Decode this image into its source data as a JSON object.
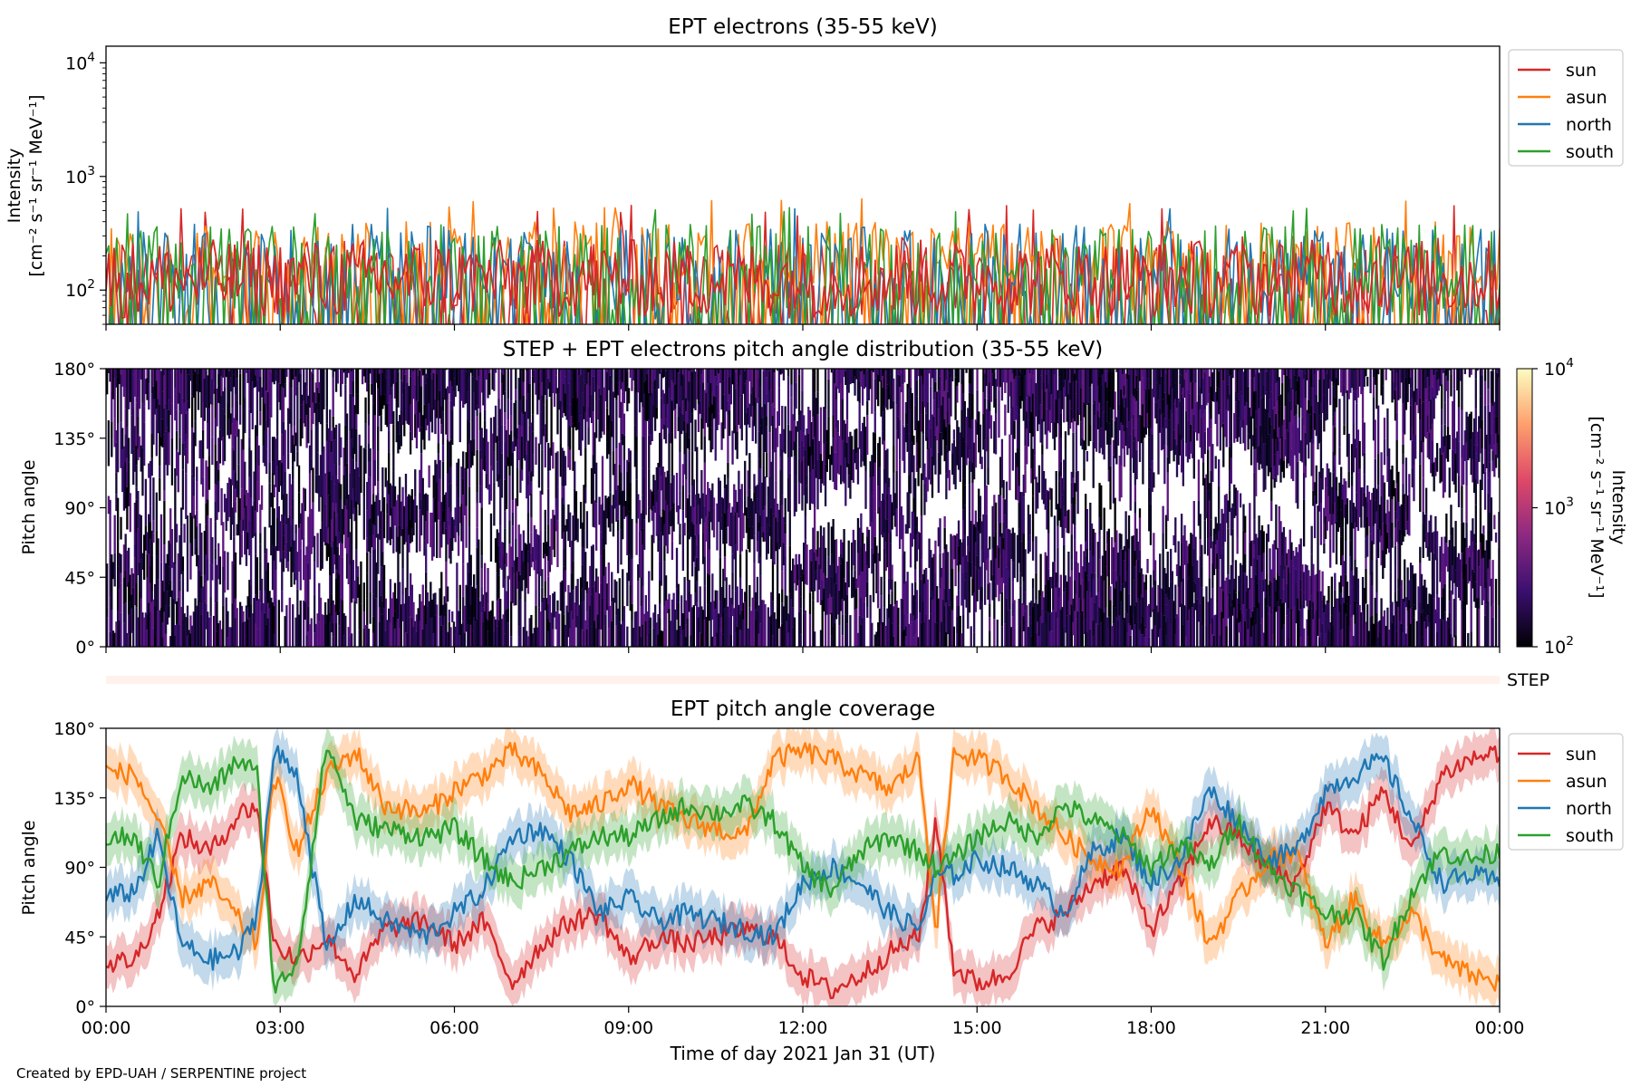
{
  "footer": "Created by EPD-UAH / SERPENTINE project",
  "colors": {
    "sun": "#d62728",
    "asun": "#ff7f0e",
    "north": "#1f77b4",
    "south": "#2ca02c"
  },
  "chart_data": [
    {
      "type": "line",
      "title": "EPT electrons (35-55 keV)",
      "ylabel_lines": [
        "Intensity",
        "[cm⁻² s⁻¹ sr⁻¹ MeV⁻¹]"
      ],
      "yscale": "log",
      "ylim": [
        50,
        14000
      ],
      "yticks": [
        {
          "value": 100,
          "base": "10",
          "exp": "2"
        },
        {
          "value": 1000,
          "base": "10",
          "exp": "3"
        },
        {
          "value": 10000,
          "base": "10",
          "exp": "4"
        }
      ],
      "xlim_hours": [
        0,
        24
      ],
      "legend_position": "upper right, outside",
      "series": [
        {
          "name": "sun",
          "color": "#d62728",
          "typical_range": [
            55,
            300
          ],
          "max": 560
        },
        {
          "name": "asun",
          "color": "#ff7f0e",
          "typical_range": [
            60,
            400
          ],
          "max": 650
        },
        {
          "name": "north",
          "color": "#1f77b4",
          "typical_range": [
            55,
            380
          ],
          "max": 580
        },
        {
          "name": "south",
          "color": "#2ca02c",
          "typical_range": [
            55,
            380
          ],
          "max": 550
        }
      ]
    },
    {
      "type": "heatmap",
      "title": "STEP + EPT electrons pitch angle distribution (35-55 keV)",
      "ylabel": "Pitch angle",
      "ylim": [
        0,
        180
      ],
      "yticks": [
        "0°",
        "45°",
        "90°",
        "135°",
        "180°"
      ],
      "xlim_hours": [
        0,
        24
      ],
      "colorbar": {
        "scale": "log",
        "range": [
          100,
          10000
        ],
        "label_lines": [
          "Intensity",
          "[cm⁻² s⁻¹ sr⁻¹ MeV⁻¹]"
        ],
        "ticks": [
          {
            "value": 100,
            "base": "10",
            "exp": "2"
          },
          {
            "value": 1000,
            "base": "10",
            "exp": "3"
          },
          {
            "value": 10000,
            "base": "10",
            "exp": "4"
          }
        ]
      }
    },
    {
      "type": "heatmap",
      "label": "STEP",
      "xlim_hours": [
        0,
        24
      ]
    },
    {
      "type": "line",
      "title": "EPT pitch angle coverage",
      "ylabel": "Pitch angle",
      "ylim": [
        0,
        180
      ],
      "yticks": [
        "0°",
        "45°",
        "90°",
        "135°",
        "180°"
      ],
      "xlabel": "Time of day 2021 Jan 31 (UT)",
      "xticks": [
        "00:00",
        "03:00",
        "06:00",
        "09:00",
        "12:00",
        "15:00",
        "18:00",
        "21:00",
        "00:00"
      ],
      "legend_position": "upper right, outside",
      "hours": [
        0,
        0.5,
        0.9,
        1.3,
        1.8,
        2.3,
        2.6,
        2.9,
        3.3,
        3.8,
        4.3,
        4.8,
        5.5,
        6.0,
        6.5,
        7.0,
        7.5,
        8.0,
        8.5,
        9.0,
        9.5,
        10.0,
        10.5,
        11.0,
        11.5,
        12.0,
        12.5,
        13.0,
        13.5,
        14.0,
        14.3,
        14.6,
        15.0,
        15.5,
        16.0,
        16.5,
        17.0,
        17.5,
        18.0,
        18.5,
        19.0,
        19.5,
        20.0,
        20.5,
        21.0,
        21.5,
        22.0,
        22.5,
        23.0,
        23.5,
        24.0
      ],
      "series": [
        {
          "name": "sun",
          "color": "#d62728",
          "values": [
            28,
            30,
            60,
            110,
            100,
            125,
            130,
            40,
            30,
            45,
            20,
            50,
            55,
            40,
            55,
            15,
            40,
            55,
            60,
            30,
            45,
            40,
            45,
            50,
            45,
            20,
            10,
            20,
            35,
            45,
            120,
            25,
            15,
            20,
            50,
            60,
            80,
            90,
            50,
            80,
            120,
            110,
            90,
            80,
            130,
            110,
            140,
            100,
            150,
            160,
            165
          ]
        },
        {
          "name": "asun",
          "color": "#ff7f0e",
          "values": [
            152,
            150,
            120,
            70,
            80,
            55,
            40,
            150,
            100,
            150,
            165,
            130,
            125,
            140,
            150,
            165,
            150,
            125,
            130,
            145,
            130,
            120,
            115,
            110,
            160,
            165,
            160,
            150,
            140,
            160,
            50,
            165,
            160,
            150,
            130,
            110,
            95,
            90,
            130,
            90,
            40,
            70,
            95,
            100,
            40,
            70,
            40,
            60,
            30,
            20,
            15
          ]
        },
        {
          "name": "north",
          "color": "#1f77b4",
          "values": [
            70,
            75,
            110,
            40,
            30,
            35,
            60,
            165,
            150,
            35,
            70,
            55,
            45,
            60,
            75,
            110,
            115,
            95,
            60,
            70,
            55,
            60,
            55,
            50,
            45,
            80,
            90,
            80,
            60,
            50,
            85,
            85,
            95,
            90,
            80,
            60,
            100,
            110,
            80,
            95,
            140,
            120,
            95,
            100,
            140,
            150,
            160,
            120,
            80,
            85,
            80
          ]
        },
        {
          "name": "south",
          "color": "#2ca02c",
          "values": [
            110,
            108,
            80,
            150,
            140,
            160,
            150,
            10,
            30,
            170,
            120,
            115,
            110,
            115,
            95,
            80,
            90,
            100,
            110,
            110,
            120,
            130,
            125,
            130,
            120,
            90,
            75,
            100,
            110,
            100,
            90,
            95,
            110,
            120,
            110,
            130,
            120,
            110,
            90,
            105,
            90,
            120,
            90,
            75,
            60,
            60,
            30,
            75,
            100,
            95,
            100
          ]
        }
      ]
    }
  ]
}
